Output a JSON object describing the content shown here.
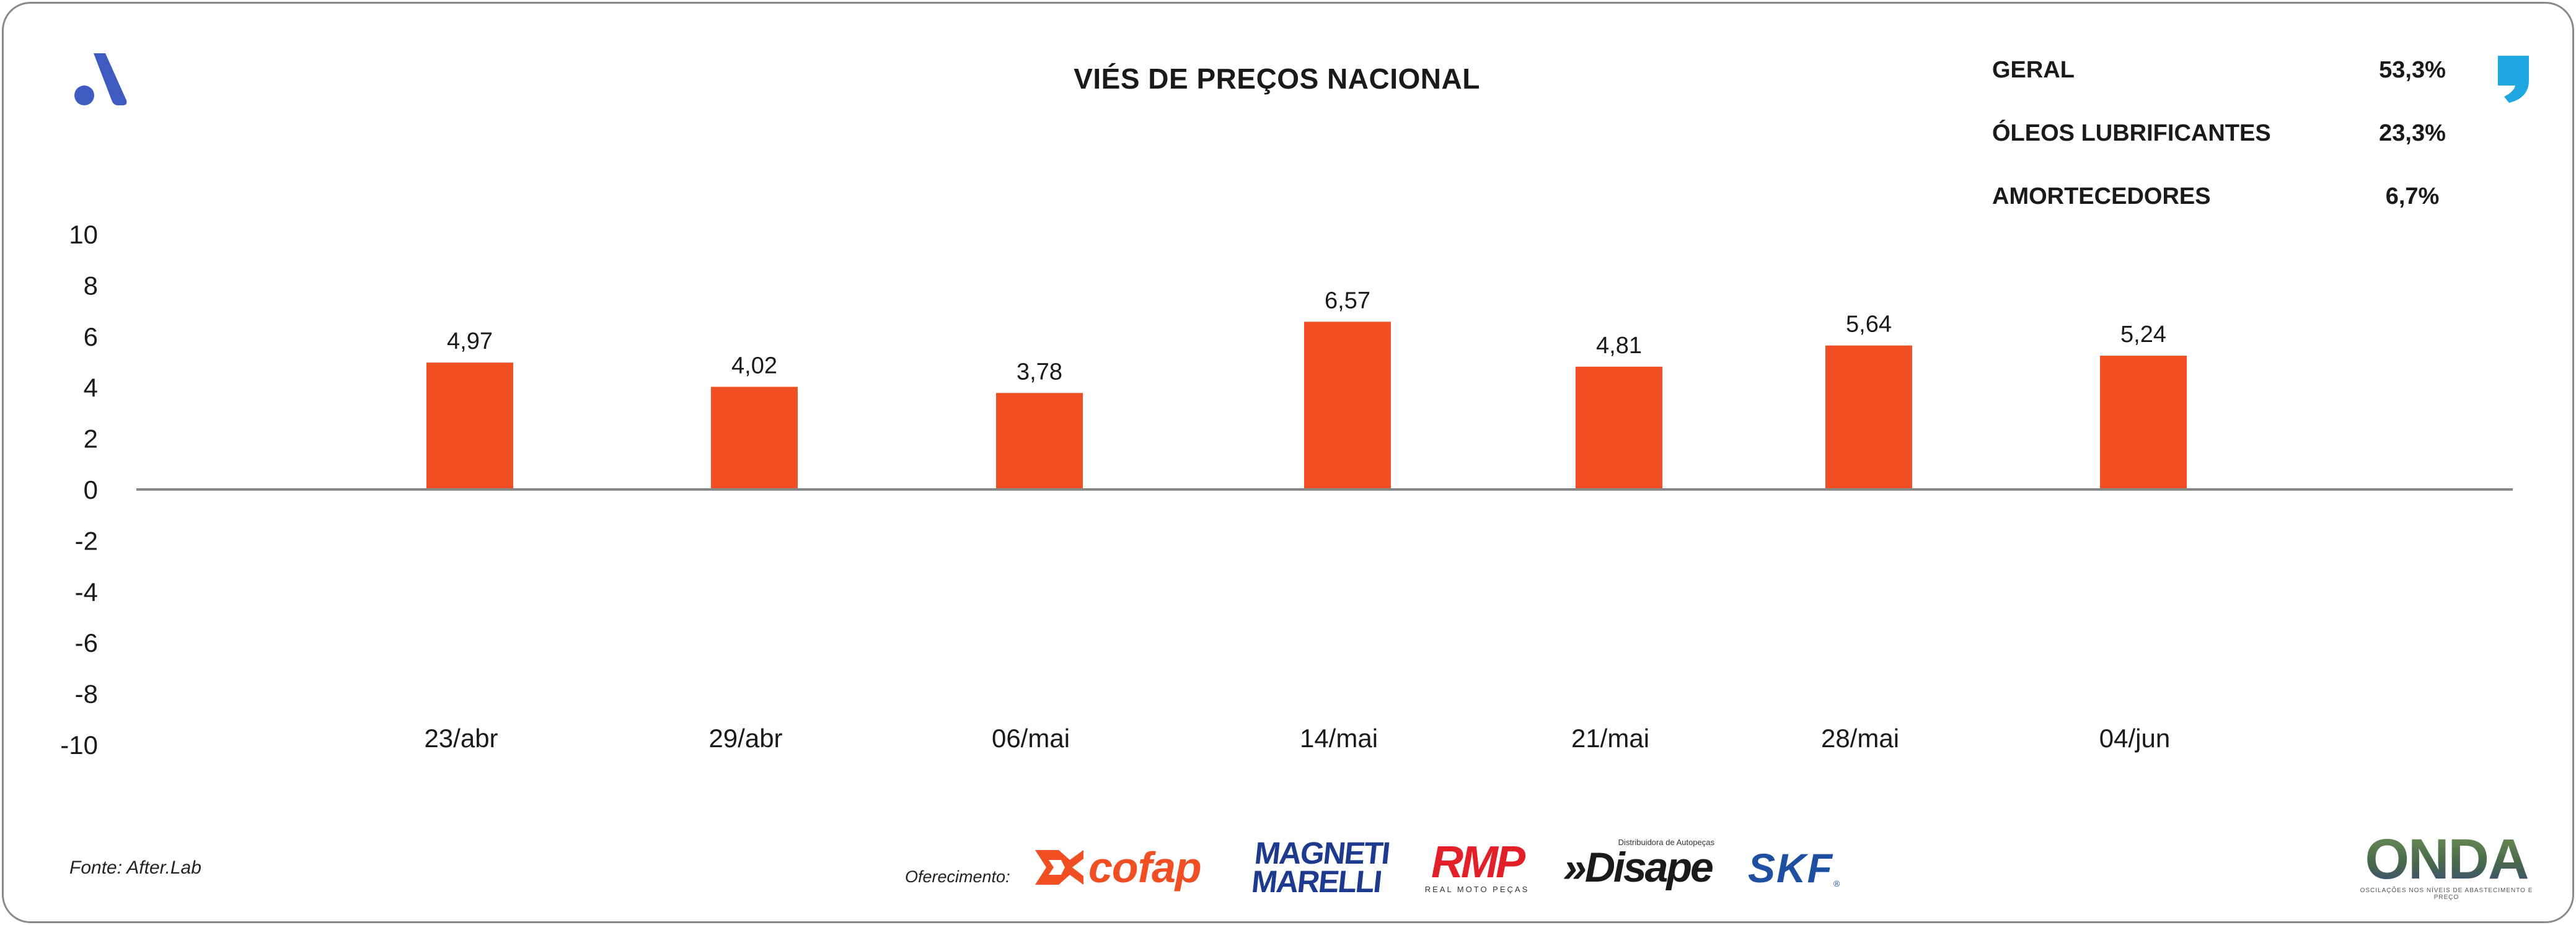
{
  "header": {
    "title": "VIÉS DE PREÇOS NACIONAL"
  },
  "stats": [
    {
      "label": "GERAL",
      "value": "53,3%"
    },
    {
      "label": "ÓLEOS LUBRIFICANTES",
      "value": "23,3%"
    },
    {
      "label": "AMORTECEDORES",
      "value": "6,7%"
    }
  ],
  "icons": {
    "brand_logo": "logo-a-icon",
    "quote": "quote-icon"
  },
  "colors": {
    "bar": "#f04e23",
    "brand_blue": "#3d5bc0",
    "quote_blue": "#1ea7e1"
  },
  "chart_data": {
    "type": "bar",
    "title": "VIÉS DE PREÇOS NACIONAL",
    "xlabel": "",
    "ylabel": "",
    "categories": [
      "23/abr",
      "29/abr",
      "06/mai",
      "14/mai",
      "21/mai",
      "28/mai",
      "04/jun"
    ],
    "values": [
      4.97,
      4.02,
      3.78,
      6.57,
      4.81,
      5.64,
      5.24
    ],
    "value_labels": [
      "4,97",
      "4,02",
      "3,78",
      "6,57",
      "4,81",
      "5,64",
      "5,24"
    ],
    "ylim": [
      -10,
      10
    ],
    "yticks": [
      "10",
      "8",
      "6",
      "4",
      "2",
      "0",
      "-2",
      "-4",
      "-6",
      "-8",
      "-10"
    ],
    "ytick_values": [
      10,
      8,
      6,
      4,
      2,
      0,
      -2,
      -4,
      -6,
      -8,
      -10
    ],
    "grid": false,
    "legend": "none"
  },
  "footer": {
    "source": "Fonte: After.Lab",
    "sponsor_label": "Oferecimento:",
    "sponsors": {
      "cofap": "cofap",
      "magneti_line1": "MAGNETI",
      "magneti_line2": "MARELLI",
      "rmp": "RMP",
      "rmp_sub": "REAL MOTO PEÇAS",
      "disape_small": "Distribuidora de Autopeças",
      "disape": "»Disape",
      "skf": "SKF",
      "skf_reg": "®",
      "onda": "ONDA",
      "onda_sub": "OSCILAÇÕES NOS NÍVEIS DE ABASTECIMENTO E PREÇO"
    }
  }
}
